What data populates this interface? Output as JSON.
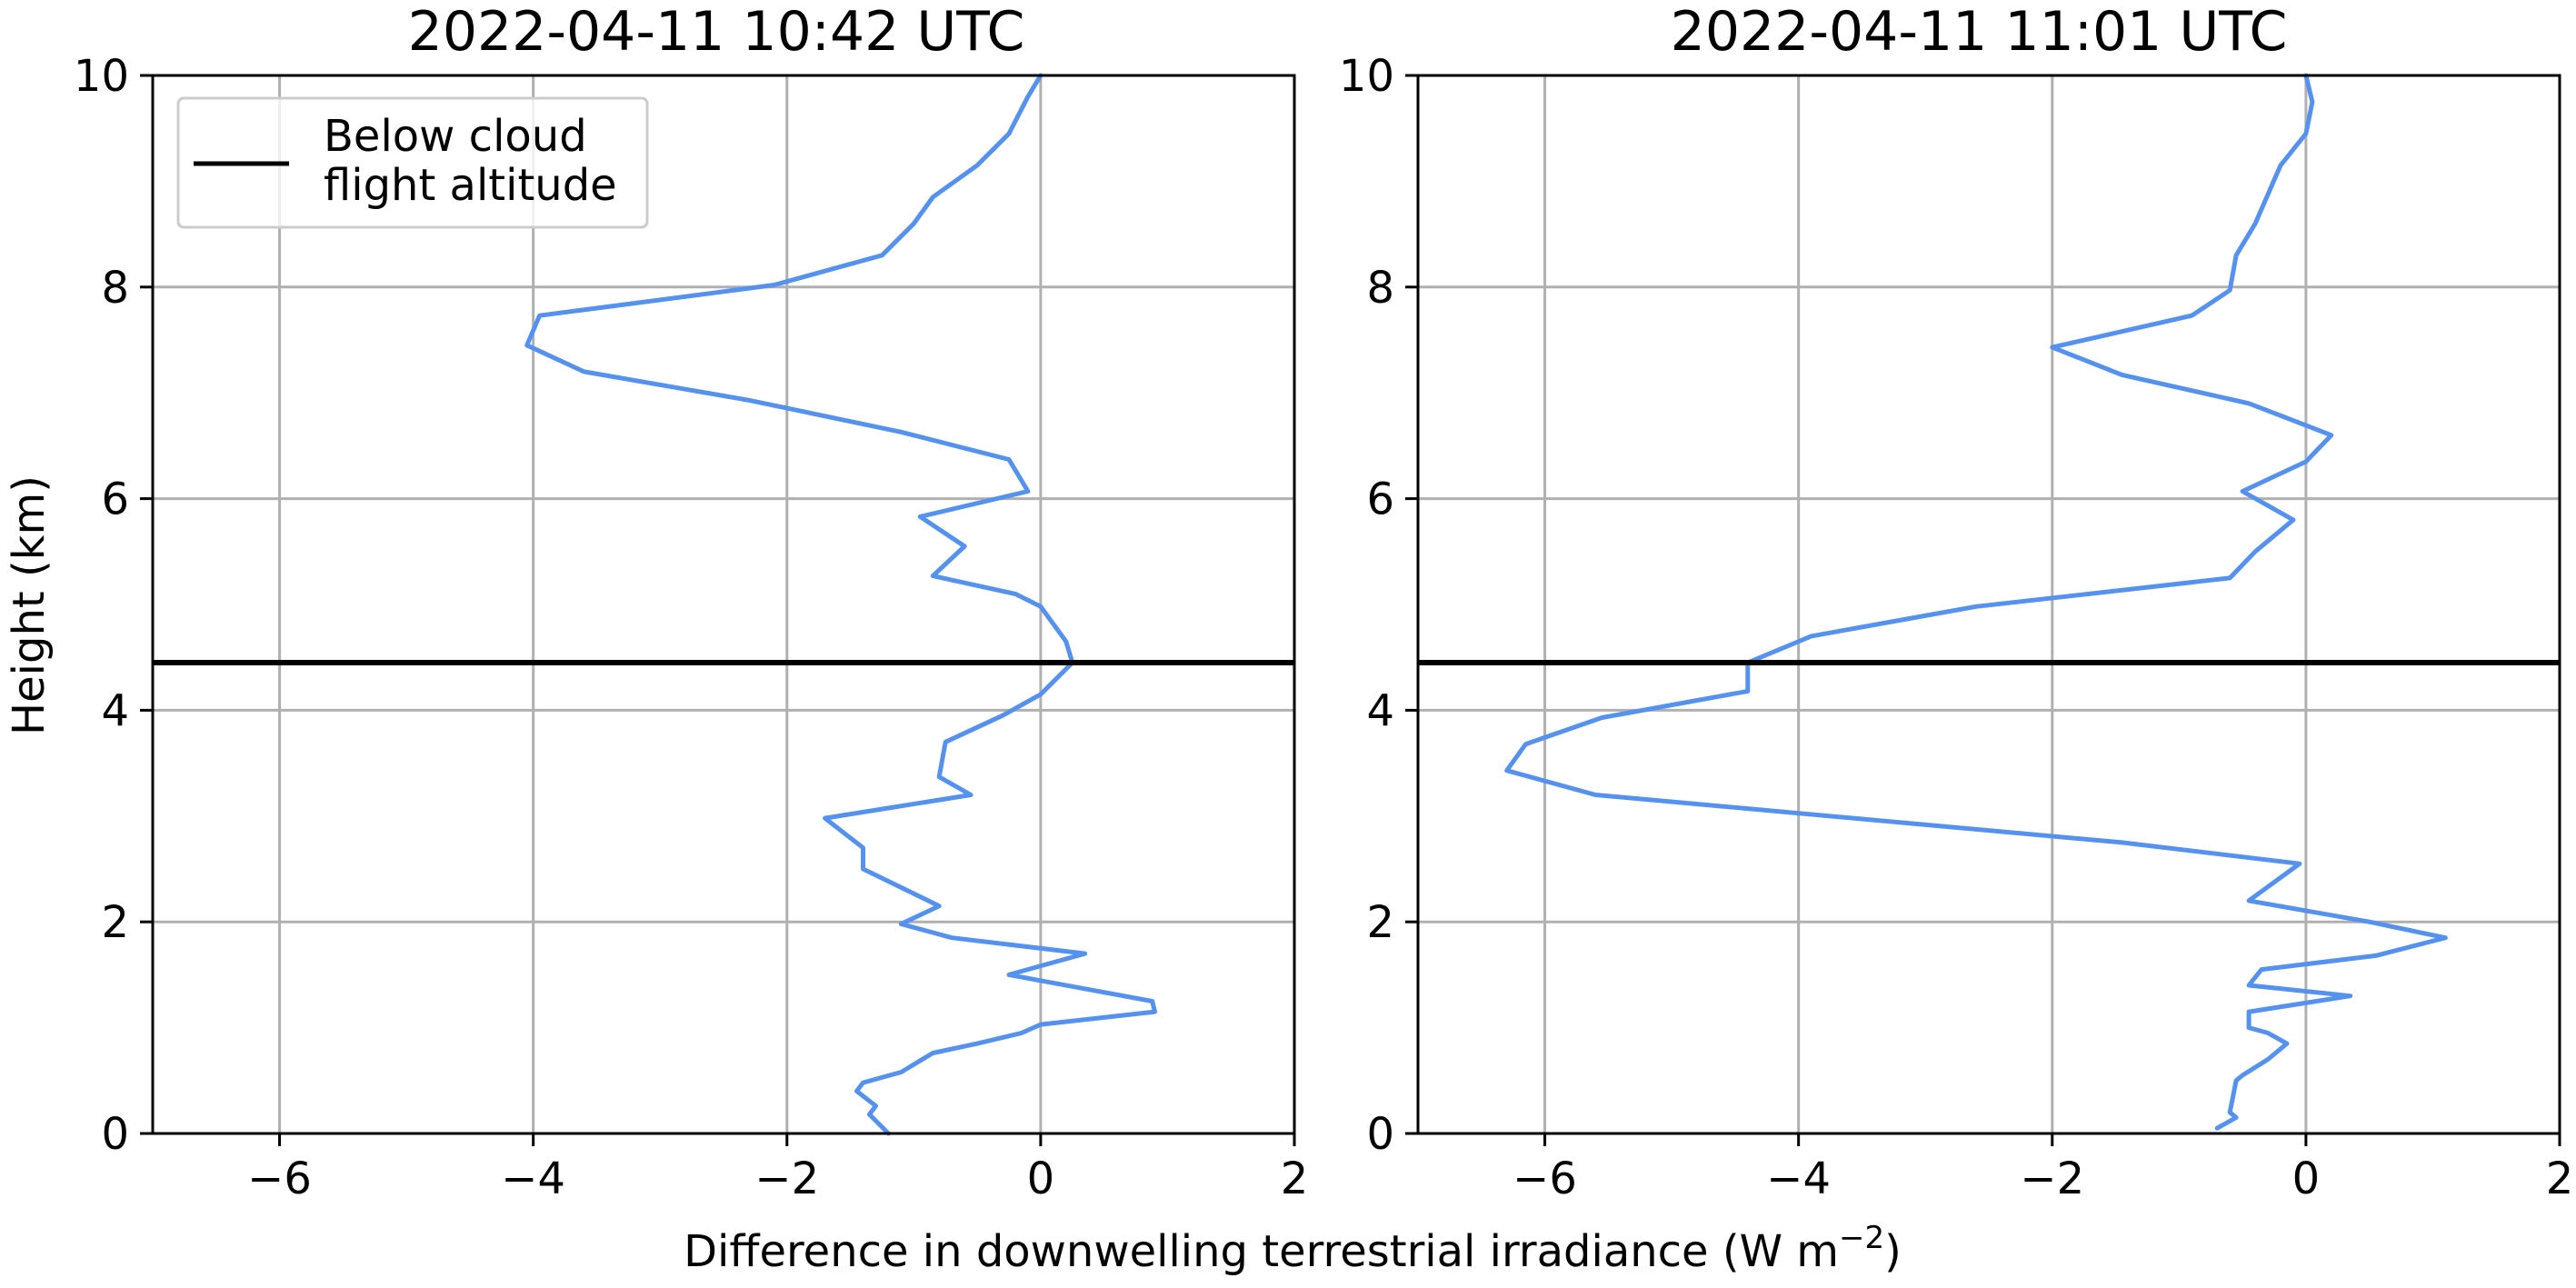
{
  "figure": {
    "xlabel": "Difference in downwelling terrestrial irradiance (W m",
    "xlabel_exp": "−2",
    "xlabel_close": ")",
    "ylabel": "Height (km)"
  },
  "legend": {
    "line1": "Below cloud",
    "line2": "flight altitude",
    "placement": "top-left"
  },
  "colors": {
    "profile": "#5591ee",
    "reference": "#000000",
    "grid": "#b0b0b0"
  },
  "chart_data": [
    {
      "type": "line",
      "title": "2022-04-11 10:42 UTC",
      "xlim": [
        -7,
        2
      ],
      "ylim": [
        0,
        10
      ],
      "xticks": [
        -6,
        -4,
        -2,
        0,
        2
      ],
      "yticks": [
        0,
        2,
        4,
        6,
        8,
        10
      ],
      "grid": true,
      "xlabel": "Difference in downwelling terrestrial irradiance (W m−2)",
      "ylabel": "Height (km)",
      "hline": {
        "y": 4.45,
        "label": "Below cloud flight altitude"
      },
      "series": [
        {
          "x": [
            -1.2,
            -1.35,
            -1.3,
            -1.45,
            -1.4,
            -1.1,
            -0.85,
            -0.5,
            -0.15,
            0.0,
            0.9,
            0.88,
            -0.25,
            0.35,
            -0.7,
            -1.1,
            -0.8,
            -1.4,
            -1.4,
            -1.7,
            -0.55,
            -0.8,
            -0.75,
            -0.3,
            0.0,
            0.25,
            0.2,
            0.0,
            -0.2,
            -0.85,
            -0.6,
            -0.95,
            -0.1,
            -0.25,
            -1.1,
            -2.3,
            -3.6,
            -4.05,
            -3.95,
            -2.1,
            -1.25,
            -1.0,
            -0.85,
            -0.5,
            -0.25,
            -0.1,
            0.0
          ],
          "y": [
            0.0,
            0.18,
            0.26,
            0.4,
            0.48,
            0.58,
            0.76,
            0.85,
            0.95,
            1.03,
            1.15,
            1.25,
            1.5,
            1.7,
            1.85,
            1.98,
            2.15,
            2.5,
            2.7,
            2.98,
            3.2,
            3.37,
            3.7,
            3.95,
            4.15,
            4.45,
            4.65,
            4.98,
            5.1,
            5.27,
            5.55,
            5.83,
            6.07,
            6.37,
            6.63,
            6.93,
            7.2,
            7.45,
            7.73,
            8.02,
            8.3,
            8.6,
            8.85,
            9.15,
            9.45,
            9.8,
            10.0
          ]
        }
      ]
    },
    {
      "type": "line",
      "title": "2022-04-11 11:01 UTC",
      "xlim": [
        -7,
        2
      ],
      "ylim": [
        0,
        10
      ],
      "xticks": [
        -6,
        -4,
        -2,
        0,
        2
      ],
      "yticks": [
        0,
        2,
        4,
        6,
        8,
        10
      ],
      "grid": true,
      "xlabel": "Difference in downwelling terrestrial irradiance (W m−2)",
      "ylabel": "Height (km)",
      "hline": {
        "y": 4.45,
        "label": "Below cloud flight altitude"
      },
      "series": [
        {
          "x": [
            -0.7,
            -0.55,
            -0.6,
            -0.55,
            -0.5,
            -0.3,
            -0.15,
            -0.3,
            -0.45,
            -0.45,
            0.35,
            -0.45,
            -0.35,
            0.55,
            1.1,
            0.5,
            -0.45,
            -0.05,
            -1.45,
            -5.6,
            -6.3,
            -6.15,
            -5.55,
            -4.4,
            -4.4,
            -3.9,
            -2.6,
            -0.6,
            -0.4,
            -0.1,
            -0.5,
            0.0,
            0.2,
            -0.45,
            -1.45,
            -2.0,
            -0.9,
            -0.6,
            -0.55,
            -0.4,
            -0.2,
            0.0,
            0.05,
            0.0
          ],
          "y": [
            0.05,
            0.15,
            0.2,
            0.5,
            0.55,
            0.7,
            0.85,
            0.95,
            1.0,
            1.15,
            1.3,
            1.4,
            1.55,
            1.68,
            1.85,
            2.0,
            2.2,
            2.55,
            2.75,
            3.2,
            3.43,
            3.68,
            3.93,
            4.18,
            4.45,
            4.7,
            4.98,
            5.25,
            5.5,
            5.8,
            6.07,
            6.35,
            6.6,
            6.9,
            7.17,
            7.43,
            7.73,
            7.97,
            8.3,
            8.6,
            9.15,
            9.45,
            9.75,
            10.0
          ]
        }
      ]
    }
  ]
}
